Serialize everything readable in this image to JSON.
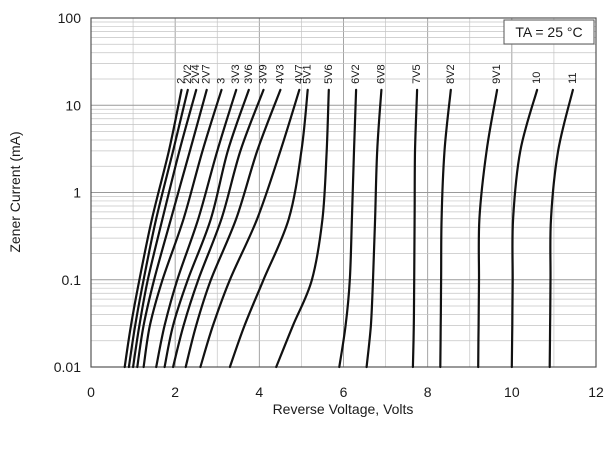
{
  "chart_data": {
    "type": "line",
    "xlabel": "Reverse Voltage, Volts",
    "ylabel": "Zener Current (mA)",
    "xlim": [
      0,
      12
    ],
    "ylim": [
      0.01,
      100
    ],
    "yscale": "log",
    "grid": true,
    "x_ticks": [
      "0",
      "2",
      "4",
      "6",
      "8",
      "10",
      "12"
    ],
    "y_ticks": [
      "0.01",
      "0.1",
      "1",
      "10",
      "100"
    ],
    "annotation": "TA = 25 °C",
    "series": [
      {
        "name": "2",
        "x": [
          0.8,
          0.95,
          1.15,
          1.45,
          1.85,
          2.15
        ],
        "y": [
          0.01,
          0.03,
          0.1,
          0.5,
          3,
          15
        ]
      },
      {
        "name": "2V2",
        "x": [
          0.9,
          1.05,
          1.25,
          1.55,
          1.95,
          2.3
        ],
        "y": [
          0.01,
          0.03,
          0.1,
          0.5,
          3,
          15
        ]
      },
      {
        "name": "2V4",
        "x": [
          1.0,
          1.15,
          1.35,
          1.7,
          2.1,
          2.5
        ],
        "y": [
          0.01,
          0.03,
          0.1,
          0.5,
          3,
          15
        ]
      },
      {
        "name": "2V7",
        "x": [
          1.1,
          1.25,
          1.5,
          1.9,
          2.35,
          2.75
        ],
        "y": [
          0.01,
          0.03,
          0.1,
          0.5,
          3,
          15
        ]
      },
      {
        "name": "3",
        "x": [
          1.25,
          1.4,
          1.7,
          2.2,
          2.65,
          3.1
        ],
        "y": [
          0.01,
          0.03,
          0.1,
          0.5,
          3,
          15
        ]
      },
      {
        "name": "3V3",
        "x": [
          1.55,
          1.75,
          2.05,
          2.55,
          3.0,
          3.45
        ],
        "y": [
          0.01,
          0.03,
          0.1,
          0.5,
          3,
          15
        ]
      },
      {
        "name": "3V6",
        "x": [
          1.75,
          1.95,
          2.3,
          2.85,
          3.25,
          3.75
        ],
        "y": [
          0.01,
          0.03,
          0.1,
          0.5,
          3,
          15
        ]
      },
      {
        "name": "3V9",
        "x": [
          1.95,
          2.2,
          2.55,
          3.1,
          3.55,
          4.1
        ],
        "y": [
          0.01,
          0.03,
          0.1,
          0.5,
          3,
          15
        ]
      },
      {
        "name": "4V3",
        "x": [
          2.25,
          2.5,
          2.85,
          3.45,
          3.95,
          4.5
        ],
        "y": [
          0.01,
          0.03,
          0.1,
          0.5,
          3,
          15
        ]
      },
      {
        "name": "4V7",
        "x": [
          2.6,
          2.9,
          3.3,
          3.95,
          4.5,
          4.95
        ],
        "y": [
          0.01,
          0.03,
          0.1,
          0.5,
          3,
          15
        ]
      },
      {
        "name": "5V1",
        "x": [
          3.3,
          3.65,
          4.1,
          4.7,
          5.0,
          5.15
        ],
        "y": [
          0.01,
          0.03,
          0.1,
          0.5,
          3,
          15
        ]
      },
      {
        "name": "5V6",
        "x": [
          4.4,
          4.8,
          5.25,
          5.5,
          5.6,
          5.65
        ],
        "y": [
          0.01,
          0.03,
          0.1,
          0.5,
          3,
          15
        ]
      },
      {
        "name": "6V2",
        "x": [
          5.9,
          6.05,
          6.15,
          6.2,
          6.25,
          6.3
        ],
        "y": [
          0.01,
          0.03,
          0.1,
          0.5,
          3,
          15
        ]
      },
      {
        "name": "6V8",
        "x": [
          6.55,
          6.65,
          6.7,
          6.75,
          6.8,
          6.9
        ],
        "y": [
          0.01,
          0.03,
          0.1,
          0.5,
          3,
          15
        ]
      },
      {
        "name": "7V5",
        "x": [
          7.65,
          7.67,
          7.68,
          7.69,
          7.7,
          7.75
        ],
        "y": [
          0.01,
          0.03,
          0.1,
          0.5,
          3,
          15
        ]
      },
      {
        "name": "8V2",
        "x": [
          8.3,
          8.31,
          8.32,
          8.33,
          8.4,
          8.55
        ],
        "y": [
          0.01,
          0.03,
          0.1,
          0.5,
          3,
          15
        ]
      },
      {
        "name": "9V1",
        "x": [
          9.2,
          9.21,
          9.22,
          9.23,
          9.4,
          9.65
        ],
        "y": [
          0.01,
          0.03,
          0.1,
          0.5,
          3,
          15
        ]
      },
      {
        "name": "10",
        "x": [
          10.0,
          10.01,
          10.02,
          10.03,
          10.2,
          10.6
        ],
        "y": [
          0.01,
          0.03,
          0.1,
          0.5,
          3,
          15
        ]
      },
      {
        "name": "11",
        "x": [
          10.9,
          10.91,
          10.92,
          10.93,
          11.1,
          11.45
        ],
        "y": [
          0.01,
          0.03,
          0.1,
          0.5,
          3,
          15
        ]
      }
    ]
  }
}
